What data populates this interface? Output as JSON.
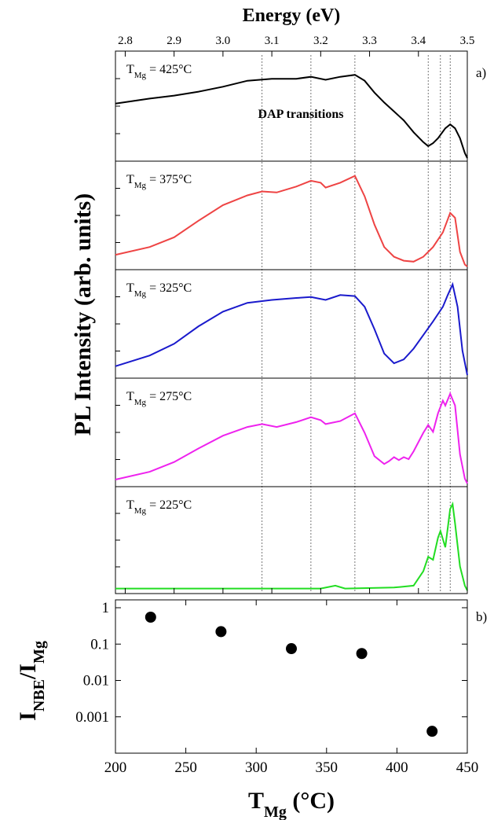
{
  "chart_data": [
    {
      "type": "line",
      "panel_label": "a)",
      "xlabel": "Energy (eV)",
      "ylabel": "PL Intensity (arb. units)",
      "xlim": [
        2.78,
        3.5
      ],
      "xticks": [
        "2.8",
        "2.9",
        "3.0",
        "3.1",
        "3.2",
        "3.3",
        "3.4",
        "3.5"
      ],
      "annotation": "DAP transitions",
      "reference_lines_eV": [
        3.08,
        3.18,
        3.27,
        3.42,
        3.445,
        3.465
      ],
      "series": [
        {
          "label_main": "T",
          "label_sub": "Mg",
          "label_value": "= 425°C",
          "color": "#000000",
          "points": [
            [
              2.78,
              0.55
            ],
            [
              2.85,
              0.6
            ],
            [
              2.9,
              0.63
            ],
            [
              2.95,
              0.67
            ],
            [
              3.0,
              0.72
            ],
            [
              3.05,
              0.78
            ],
            [
              3.1,
              0.8
            ],
            [
              3.15,
              0.8
            ],
            [
              3.18,
              0.82
            ],
            [
              3.21,
              0.79
            ],
            [
              3.24,
              0.82
            ],
            [
              3.27,
              0.84
            ],
            [
              3.29,
              0.78
            ],
            [
              3.31,
              0.66
            ],
            [
              3.33,
              0.56
            ],
            [
              3.35,
              0.47
            ],
            [
              3.37,
              0.38
            ],
            [
              3.39,
              0.26
            ],
            [
              3.41,
              0.16
            ],
            [
              3.42,
              0.12
            ],
            [
              3.43,
              0.15
            ],
            [
              3.44,
              0.2
            ],
            [
              3.455,
              0.3
            ],
            [
              3.465,
              0.34
            ],
            [
              3.475,
              0.3
            ],
            [
              3.485,
              0.2
            ],
            [
              3.495,
              0.05
            ],
            [
              3.5,
              0.0
            ]
          ]
        },
        {
          "label_main": "T",
          "label_sub": "Mg",
          "label_value": "= 375°C",
          "color": "#ee4444",
          "points": [
            [
              2.78,
              0.12
            ],
            [
              2.85,
              0.2
            ],
            [
              2.9,
              0.3
            ],
            [
              2.95,
              0.47
            ],
            [
              3.0,
              0.63
            ],
            [
              3.05,
              0.73
            ],
            [
              3.08,
              0.77
            ],
            [
              3.11,
              0.76
            ],
            [
              3.15,
              0.82
            ],
            [
              3.18,
              0.88
            ],
            [
              3.2,
              0.86
            ],
            [
              3.21,
              0.81
            ],
            [
              3.24,
              0.86
            ],
            [
              3.27,
              0.93
            ],
            [
              3.29,
              0.72
            ],
            [
              3.31,
              0.43
            ],
            [
              3.33,
              0.2
            ],
            [
              3.35,
              0.1
            ],
            [
              3.37,
              0.06
            ],
            [
              3.39,
              0.05
            ],
            [
              3.41,
              0.1
            ],
            [
              3.43,
              0.2
            ],
            [
              3.45,
              0.35
            ],
            [
              3.465,
              0.55
            ],
            [
              3.475,
              0.5
            ],
            [
              3.485,
              0.15
            ],
            [
              3.495,
              0.02
            ],
            [
              3.5,
              0.0
            ]
          ]
        },
        {
          "label_main": "T",
          "label_sub": "Mg",
          "label_value": "= 325°C",
          "color": "#1a1acc",
          "points": [
            [
              2.78,
              0.09
            ],
            [
              2.85,
              0.2
            ],
            [
              2.9,
              0.32
            ],
            [
              2.95,
              0.5
            ],
            [
              3.0,
              0.65
            ],
            [
              3.05,
              0.74
            ],
            [
              3.1,
              0.77
            ],
            [
              3.15,
              0.79
            ],
            [
              3.18,
              0.8
            ],
            [
              3.21,
              0.77
            ],
            [
              3.24,
              0.82
            ],
            [
              3.27,
              0.81
            ],
            [
              3.29,
              0.7
            ],
            [
              3.31,
              0.47
            ],
            [
              3.33,
              0.22
            ],
            [
              3.35,
              0.12
            ],
            [
              3.37,
              0.16
            ],
            [
              3.39,
              0.27
            ],
            [
              3.41,
              0.41
            ],
            [
              3.43,
              0.55
            ],
            [
              3.45,
              0.7
            ],
            [
              3.46,
              0.82
            ],
            [
              3.47,
              0.93
            ],
            [
              3.48,
              0.7
            ],
            [
              3.49,
              0.25
            ],
            [
              3.5,
              0.0
            ]
          ]
        },
        {
          "label_main": "T",
          "label_sub": "Mg",
          "label_value": "= 275°C",
          "color": "#ee22ee",
          "points": [
            [
              2.78,
              0.04
            ],
            [
              2.85,
              0.12
            ],
            [
              2.9,
              0.22
            ],
            [
              2.95,
              0.36
            ],
            [
              3.0,
              0.49
            ],
            [
              3.05,
              0.58
            ],
            [
              3.08,
              0.61
            ],
            [
              3.11,
              0.58
            ],
            [
              3.15,
              0.63
            ],
            [
              3.18,
              0.68
            ],
            [
              3.2,
              0.65
            ],
            [
              3.21,
              0.61
            ],
            [
              3.24,
              0.64
            ],
            [
              3.27,
              0.72
            ],
            [
              3.29,
              0.52
            ],
            [
              3.31,
              0.28
            ],
            [
              3.33,
              0.2
            ],
            [
              3.34,
              0.23
            ],
            [
              3.35,
              0.27
            ],
            [
              3.36,
              0.24
            ],
            [
              3.37,
              0.27
            ],
            [
              3.38,
              0.25
            ],
            [
              3.39,
              0.33
            ],
            [
              3.41,
              0.52
            ],
            [
              3.42,
              0.6
            ],
            [
              3.43,
              0.53
            ],
            [
              3.44,
              0.72
            ],
            [
              3.45,
              0.85
            ],
            [
              3.455,
              0.8
            ],
            [
              3.465,
              0.92
            ],
            [
              3.475,
              0.8
            ],
            [
              3.485,
              0.3
            ],
            [
              3.495,
              0.05
            ],
            [
              3.5,
              0.0
            ]
          ]
        },
        {
          "label_main": "T",
          "label_sub": "Mg",
          "label_value": "= 225°C",
          "color": "#22dd22",
          "points": [
            [
              2.78,
              0.02
            ],
            [
              3.0,
              0.02
            ],
            [
              3.2,
              0.02
            ],
            [
              3.23,
              0.05
            ],
            [
              3.25,
              0.02
            ],
            [
              3.35,
              0.03
            ],
            [
              3.39,
              0.05
            ],
            [
              3.41,
              0.2
            ],
            [
              3.42,
              0.35
            ],
            [
              3.43,
              0.32
            ],
            [
              3.44,
              0.55
            ],
            [
              3.445,
              0.62
            ],
            [
              3.455,
              0.45
            ],
            [
              3.465,
              0.85
            ],
            [
              3.47,
              0.9
            ],
            [
              3.475,
              0.7
            ],
            [
              3.485,
              0.25
            ],
            [
              3.495,
              0.05
            ],
            [
              3.5,
              0.0
            ]
          ]
        }
      ]
    },
    {
      "type": "scatter",
      "panel_label": "b)",
      "xlabel_main": "T",
      "xlabel_sub": "Mg",
      "xlabel_unit": " (°C)",
      "ylabel_main": "I",
      "ylabel_sub1": "NBE",
      "ylabel_sep": "/I",
      "ylabel_sub2": "Mg",
      "xlim": [
        200,
        450
      ],
      "xticks": [
        "200",
        "250",
        "300",
        "350",
        "400",
        "450"
      ],
      "ylim_log": [
        0.0001,
        1
      ],
      "yticks": [
        "0.001",
        "0.01",
        "0.1",
        "1"
      ],
      "x": [
        225,
        275,
        325,
        375,
        425
      ],
      "y": [
        0.55,
        0.22,
        0.075,
        0.055,
        0.0004
      ]
    }
  ]
}
